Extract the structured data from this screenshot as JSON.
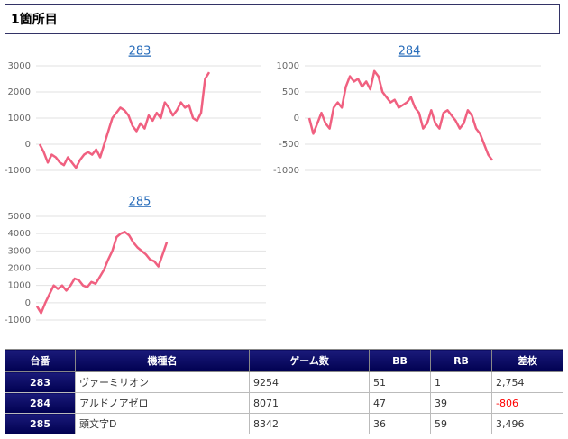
{
  "header": {
    "title": "1箇所目"
  },
  "chart_data": [
    {
      "type": "line",
      "title": "283",
      "color": "#f06080",
      "grid": true,
      "ylim": [
        -1000,
        3000
      ],
      "yticks": [
        -1000,
        0,
        1000,
        2000,
        3000
      ],
      "values": [
        0,
        -300,
        -700,
        -400,
        -500,
        -700,
        -800,
        -500,
        -700,
        -900,
        -600,
        -400,
        -300,
        -400,
        -200,
        -500,
        0,
        500,
        1000,
        1200,
        1400,
        1300,
        1100,
        700,
        500,
        800,
        600,
        1100,
        900,
        1200,
        1000,
        1600,
        1400,
        1100,
        1300,
        1600,
        1400,
        1500,
        1000,
        900,
        1200,
        2500,
        2754
      ]
    },
    {
      "type": "line",
      "title": "284",
      "color": "#f06080",
      "grid": true,
      "ylim": [
        -1000,
        1000
      ],
      "yticks": [
        -1000,
        -500,
        0,
        500,
        1000
      ],
      "values": [
        0,
        -300,
        -100,
        100,
        -100,
        -200,
        200,
        300,
        200,
        600,
        800,
        700,
        750,
        600,
        700,
        550,
        900,
        800,
        500,
        400,
        300,
        350,
        200,
        250,
        300,
        400,
        200,
        100,
        -200,
        -100,
        150,
        -100,
        -200,
        100,
        150,
        50,
        -50,
        -200,
        -100,
        150,
        50,
        -200,
        -300,
        -500,
        -700,
        -806
      ]
    },
    {
      "type": "line",
      "title": "285",
      "color": "#f06080",
      "grid": true,
      "ylim": [
        -1000,
        5000
      ],
      "yticks": [
        -1000,
        0,
        1000,
        2000,
        3000,
        4000,
        5000
      ],
      "values": [
        -200,
        -600,
        0,
        500,
        1000,
        800,
        1000,
        700,
        1000,
        1400,
        1300,
        1000,
        900,
        1200,
        1100,
        1500,
        1900,
        2500,
        3000,
        3800,
        4000,
        4100,
        3900,
        3500,
        3200,
        3000,
        2800,
        2500,
        2400,
        2100,
        2800,
        3496
      ]
    }
  ],
  "table": {
    "columns": [
      "台番",
      "機種名",
      "ゲーム数",
      "BB",
      "RB",
      "差枚"
    ],
    "rows": [
      [
        "283",
        "ヴァーミリオン",
        "9254",
        "51",
        "1",
        "2,754"
      ],
      [
        "284",
        "アルドノアゼロ",
        "8071",
        "47",
        "39",
        "-806"
      ],
      [
        "285",
        "頭文字D",
        "8342",
        "36",
        "59",
        "3,496"
      ]
    ]
  }
}
